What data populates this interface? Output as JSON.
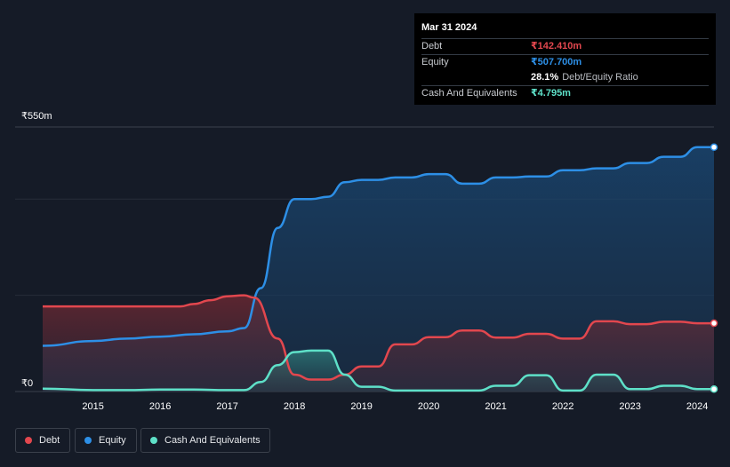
{
  "tooltip": {
    "date": "Mar 31 2024",
    "rows": [
      {
        "label": "Debt",
        "value": "₹142.410m",
        "color": "#e2474e"
      },
      {
        "label": "Equity",
        "value": "₹507.700m",
        "color": "#2d8fe6"
      }
    ],
    "ratio_value": "28.1%",
    "ratio_label": "Debt/Equity Ratio",
    "cash": {
      "label": "Cash And Equivalents",
      "value": "₹4.795m",
      "color": "#5ee0c8"
    }
  },
  "legend": [
    {
      "label": "Debt",
      "color": "#e2474e"
    },
    {
      "label": "Equity",
      "color": "#2d8fe6"
    },
    {
      "label": "Cash And Equivalents",
      "color": "#5ee0c8"
    }
  ],
  "chart_data": {
    "type": "area",
    "ylim": [
      0,
      550
    ],
    "y_unit": "₹m",
    "y_ticks": [
      {
        "value": 550,
        "label": "₹550m"
      },
      {
        "value": 0,
        "label": "₹0"
      }
    ],
    "xlim": [
      2014.25,
      2024.25
    ],
    "x_ticks": [
      2015,
      2016,
      2017,
      2018,
      2019,
      2020,
      2021,
      2022,
      2023,
      2024
    ],
    "grid": true,
    "legend_position": "bottom-left",
    "series": [
      {
        "name": "Equity",
        "color": "#2d8fe6",
        "points": [
          [
            2014.25,
            95
          ],
          [
            2015,
            105
          ],
          [
            2015.5,
            110
          ],
          [
            2016,
            114
          ],
          [
            2016.5,
            119
          ],
          [
            2017,
            125
          ],
          [
            2017.25,
            132
          ],
          [
            2017.5,
            215
          ],
          [
            2017.75,
            340
          ],
          [
            2018,
            400
          ],
          [
            2018.25,
            400
          ],
          [
            2018.5,
            405
          ],
          [
            2018.75,
            435
          ],
          [
            2019,
            440
          ],
          [
            2019.25,
            440
          ],
          [
            2019.5,
            445
          ],
          [
            2019.75,
            445
          ],
          [
            2020,
            452
          ],
          [
            2020.25,
            452
          ],
          [
            2020.5,
            432
          ],
          [
            2020.75,
            432
          ],
          [
            2021,
            445
          ],
          [
            2021.25,
            445
          ],
          [
            2021.5,
            447
          ],
          [
            2021.75,
            447
          ],
          [
            2022,
            460
          ],
          [
            2022.25,
            460
          ],
          [
            2022.5,
            464
          ],
          [
            2022.75,
            464
          ],
          [
            2023,
            475
          ],
          [
            2023.25,
            475
          ],
          [
            2023.5,
            488
          ],
          [
            2023.75,
            488
          ],
          [
            2024,
            508
          ],
          [
            2024.25,
            508
          ]
        ]
      },
      {
        "name": "Debt",
        "color": "#e2474e",
        "points": [
          [
            2014.25,
            177
          ],
          [
            2015,
            177
          ],
          [
            2015.5,
            177
          ],
          [
            2016,
            177
          ],
          [
            2016.3,
            177
          ],
          [
            2016.5,
            182
          ],
          [
            2016.75,
            190
          ],
          [
            2017,
            198
          ],
          [
            2017.25,
            200
          ],
          [
            2017.4,
            195
          ],
          [
            2017.75,
            110
          ],
          [
            2018,
            35
          ],
          [
            2018.25,
            25
          ],
          [
            2018.5,
            25
          ],
          [
            2018.75,
            35
          ],
          [
            2019,
            52
          ],
          [
            2019.25,
            52
          ],
          [
            2019.5,
            98
          ],
          [
            2019.75,
            98
          ],
          [
            2020,
            113
          ],
          [
            2020.25,
            113
          ],
          [
            2020.5,
            127
          ],
          [
            2020.75,
            127
          ],
          [
            2021,
            112
          ],
          [
            2021.25,
            112
          ],
          [
            2021.5,
            120
          ],
          [
            2021.75,
            120
          ],
          [
            2022,
            110
          ],
          [
            2022.25,
            110
          ],
          [
            2022.5,
            146
          ],
          [
            2022.75,
            146
          ],
          [
            2023,
            140
          ],
          [
            2023.25,
            140
          ],
          [
            2023.5,
            145
          ],
          [
            2023.75,
            145
          ],
          [
            2024,
            142
          ],
          [
            2024.25,
            142
          ]
        ]
      },
      {
        "name": "Cash And Equivalents",
        "color": "#5ee0c8",
        "points": [
          [
            2014.25,
            6
          ],
          [
            2015,
            3
          ],
          [
            2015.5,
            3
          ],
          [
            2016,
            4
          ],
          [
            2016.5,
            4
          ],
          [
            2017,
            3
          ],
          [
            2017.25,
            3
          ],
          [
            2017.5,
            20
          ],
          [
            2017.75,
            55
          ],
          [
            2018,
            82
          ],
          [
            2018.25,
            85
          ],
          [
            2018.5,
            85
          ],
          [
            2018.75,
            35
          ],
          [
            2019,
            10
          ],
          [
            2019.25,
            10
          ],
          [
            2019.5,
            2
          ],
          [
            2019.75,
            2
          ],
          [
            2020,
            2
          ],
          [
            2020.5,
            2
          ],
          [
            2020.75,
            2
          ],
          [
            2021,
            12
          ],
          [
            2021.25,
            12
          ],
          [
            2021.5,
            34
          ],
          [
            2021.75,
            34
          ],
          [
            2022,
            2
          ],
          [
            2022.25,
            2
          ],
          [
            2022.5,
            35
          ],
          [
            2022.75,
            35
          ],
          [
            2023,
            5
          ],
          [
            2023.25,
            5
          ],
          [
            2023.5,
            12
          ],
          [
            2023.75,
            12
          ],
          [
            2024,
            5
          ],
          [
            2024.25,
            5
          ]
        ]
      }
    ]
  }
}
